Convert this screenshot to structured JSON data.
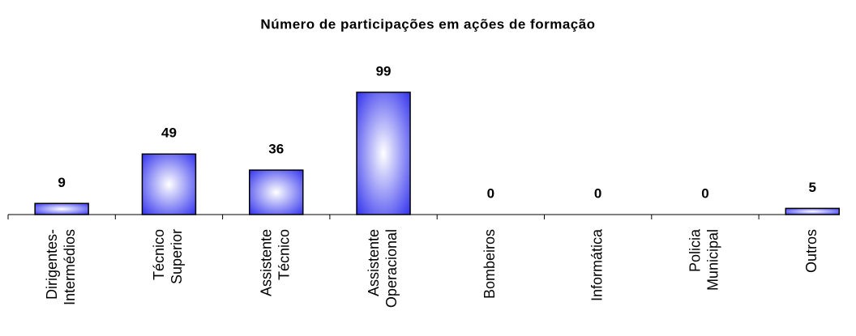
{
  "chart_data": {
    "type": "bar",
    "title": "Número de participações em ações de formação",
    "categories": [
      [
        "Dirigentes-",
        "Intermédios"
      ],
      [
        "Técnico",
        "Superior"
      ],
      [
        "Assistente",
        "Técnico"
      ],
      [
        "Assistente",
        "Operacional"
      ],
      [
        "Bombeiros"
      ],
      [
        "Informática"
      ],
      [
        "Policia",
        "Municipal"
      ],
      [
        "Outros"
      ]
    ],
    "values": [
      9,
      49,
      36,
      99,
      0,
      0,
      0,
      5
    ],
    "color": "#3333ee"
  }
}
